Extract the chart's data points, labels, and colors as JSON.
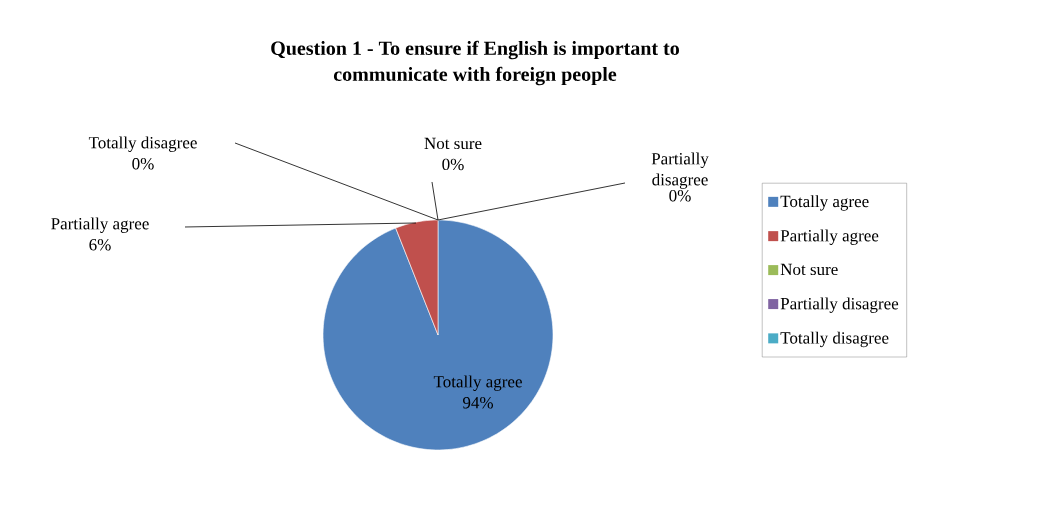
{
  "chart_data": {
    "type": "pie",
    "title": "Question 1 - To ensure if English is important to communicate with foreign people",
    "categories": [
      "Totally agree",
      "Partially agree",
      "Not sure",
      "Partially disagree",
      "Totally disagree"
    ],
    "values": [
      94,
      6,
      0,
      0,
      0
    ],
    "value_labels": [
      "94%",
      "6%",
      "0%",
      "0%",
      "0%"
    ],
    "colors": [
      "#4f81bd",
      "#c0504d",
      "#9bbb59",
      "#8064a2",
      "#4bacc6"
    ],
    "data_labels": true,
    "legend": "right"
  }
}
